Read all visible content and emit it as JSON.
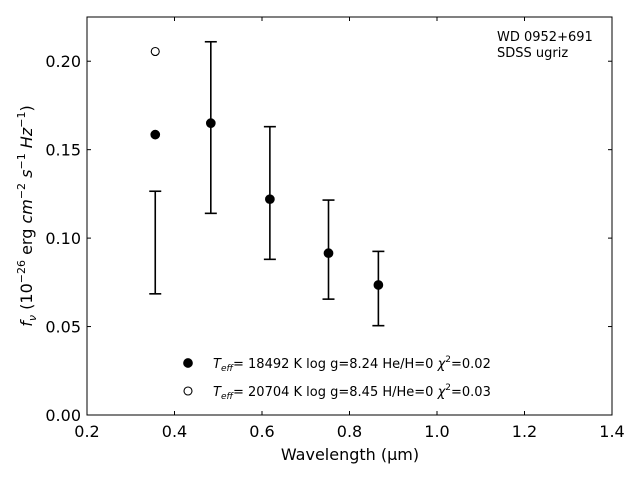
{
  "chart_data": {
    "type": "scatter",
    "title": "",
    "xlabel": "Wavelength (μm)",
    "ylabel": "f_ν (10^-26 erg cm^-2 s^-1 Hz^-1)",
    "xlim": [
      0.2,
      1.4
    ],
    "ylim": [
      0.0,
      0.225
    ],
    "x_ticks": [
      0.2,
      0.4,
      0.6,
      0.8,
      1.0,
      1.2,
      1.4
    ],
    "x_tick_labels": [
      "0.2",
      "0.4",
      "0.6",
      "0.8",
      "1.0",
      "1.2",
      "1.4"
    ],
    "y_ticks": [
      0.0,
      0.05,
      0.1,
      0.15,
      0.2
    ],
    "y_tick_labels": [
      "0.00",
      "0.05",
      "0.10",
      "0.15",
      "0.20"
    ],
    "grid": false,
    "annotation": [
      "WD 0952+691",
      "SDSS ugriz"
    ],
    "observed": {
      "x": [
        0.356,
        0.483,
        0.618,
        0.752,
        0.866
      ],
      "y": [
        0.0975,
        0.1625,
        0.1255,
        0.0935,
        0.0715
      ],
      "err": [
        0.029,
        0.0485,
        0.0375,
        0.028,
        0.021
      ]
    },
    "series": [
      {
        "label_parts": [
          "T",
          "eff",
          "= 18492 K  log g=8.24  He/H=0  ",
          "χ",
          "2",
          "=0.02"
        ],
        "marker": "filled-circle",
        "x": [
          0.356,
          0.483,
          0.618,
          0.752,
          0.866
        ],
        "y": [
          0.1585,
          0.165,
          0.122,
          0.0915,
          0.0735
        ]
      },
      {
        "label_parts": [
          "T",
          "eff",
          "= 20704 K  log g=8.45  H/He=0  ",
          "χ",
          "2",
          "=0.03"
        ],
        "marker": "open-circle",
        "x": [
          0.356
        ],
        "y": [
          0.2055
        ]
      }
    ],
    "legend_position": "bottom-center"
  }
}
